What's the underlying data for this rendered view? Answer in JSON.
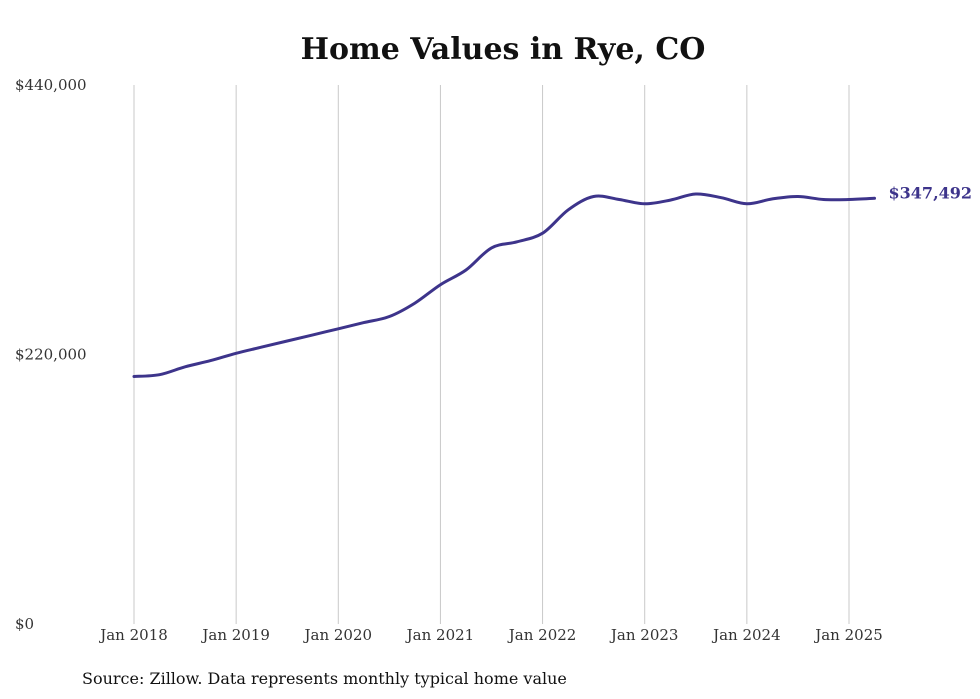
{
  "chart_data": {
    "type": "line",
    "title": "Home Values in Rye, CO",
    "xlabel": "",
    "ylabel": "",
    "ylim": [
      0,
      440000
    ],
    "y_ticks": [
      {
        "value": 0,
        "label": "$0"
      },
      {
        "value": 220000,
        "label": "$220,000"
      },
      {
        "value": 440000,
        "label": "$440,000"
      }
    ],
    "x_ticks": [
      {
        "value": "2018-01",
        "label": "Jan 2018"
      },
      {
        "value": "2019-01",
        "label": "Jan 2019"
      },
      {
        "value": "2020-01",
        "label": "Jan 2020"
      },
      {
        "value": "2021-01",
        "label": "Jan 2021"
      },
      {
        "value": "2022-01",
        "label": "Jan 2022"
      },
      {
        "value": "2023-01",
        "label": "Jan 2023"
      },
      {
        "value": "2024-01",
        "label": "Jan 2024"
      },
      {
        "value": "2025-01",
        "label": "Jan 2025"
      }
    ],
    "grid": "vertical",
    "series": [
      {
        "color": "#3d348b",
        "points": [
          [
            "2018-01",
            202000
          ],
          [
            "2018-04",
            203500
          ],
          [
            "2018-07",
            210000
          ],
          [
            "2018-10",
            215000
          ],
          [
            "2019-01",
            221000
          ],
          [
            "2019-04",
            226000
          ],
          [
            "2019-07",
            231000
          ],
          [
            "2019-10",
            236000
          ],
          [
            "2020-01",
            241000
          ],
          [
            "2020-04",
            246000
          ],
          [
            "2020-07",
            251000
          ],
          [
            "2020-10",
            262000
          ],
          [
            "2021-01",
            277000
          ],
          [
            "2021-04",
            289000
          ],
          [
            "2021-07",
            307000
          ],
          [
            "2021-10",
            312000
          ],
          [
            "2022-01",
            319000
          ],
          [
            "2022-04",
            338000
          ],
          [
            "2022-07",
            349000
          ],
          [
            "2022-10",
            346500
          ],
          [
            "2023-01",
            343000
          ],
          [
            "2023-04",
            346000
          ],
          [
            "2023-07",
            351000
          ],
          [
            "2023-10",
            348000
          ],
          [
            "2024-01",
            343000
          ],
          [
            "2024-04",
            347000
          ],
          [
            "2024-07",
            349000
          ],
          [
            "2024-10",
            346500
          ],
          [
            "2025-01",
            346500
          ],
          [
            "2025-04",
            347492
          ]
        ]
      }
    ],
    "end_label": "$347,492",
    "source": "Source: Zillow. Data represents monthly typical home value"
  }
}
